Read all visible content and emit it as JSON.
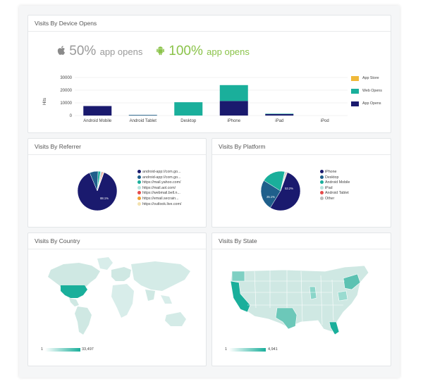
{
  "device": {
    "title": "Visits By Device Opens",
    "apple_pct": "50%",
    "apple_label": "app opens",
    "android_pct": "100%",
    "android_label": "app opens",
    "ylabel": "Hits",
    "legend": [
      "App Store",
      "Web Opens",
      "App Opens"
    ]
  },
  "chart_data": [
    {
      "type": "bar",
      "stacked": true,
      "categories": [
        "Android Mobile",
        "Android Tablet",
        "Desktop",
        "iPhone",
        "iPad",
        "iPod"
      ],
      "series": [
        {
          "name": "App Opens",
          "values": [
            7500,
            300,
            0,
            11500,
            1200,
            0
          ]
        },
        {
          "name": "Web Opens",
          "values": [
            0,
            200,
            10500,
            12500,
            300,
            0
          ]
        },
        {
          "name": "App Store",
          "values": [
            0,
            0,
            0,
            0,
            0,
            0
          ]
        }
      ],
      "yticks": [
        "30000",
        "20000",
        "10000",
        "0"
      ],
      "ylim": [
        0,
        30000
      ],
      "ylabel": "Hits",
      "colors": {
        "App Opens": "#1a1a6e",
        "Web Opens": "#1aaf9b",
        "App Store": "#f0b93a"
      }
    },
    {
      "type": "pie",
      "labels": [
        "android-app://com.go...",
        "android-app://com.go...",
        "https://mail.yahoo.com/",
        "https://mail.aol.com/",
        "https://webmail.bell.n...",
        "https://email.secrain...",
        "https://outlook.live.com/"
      ],
      "values": [
        88.1,
        7,
        2,
        1.2,
        0.8,
        0.5,
        0.4
      ],
      "colors": [
        "#1a1a6e",
        "#1f5f8b",
        "#1aaf9b",
        "#b8e2dc",
        "#e64a4a",
        "#f0a030",
        "#f3e2b0"
      ]
    },
    {
      "type": "pie",
      "labels": [
        "iPhone",
        "Desktop",
        "Android Mobile",
        "iPad",
        "Android Tablet",
        "Other"
      ],
      "values": [
        53.2,
        25.1,
        19.5,
        1.2,
        0.6,
        0.4
      ],
      "colors": [
        "#1a1a6e",
        "#1f5f8b",
        "#1aaf9b",
        "#b8e2dc",
        "#e64a4a",
        "#bbbbbb"
      ]
    }
  ],
  "referrer": {
    "title": "Visits By Referrer",
    "legend": [
      "android-app://com.go...",
      "android-app://com.go...",
      "https://mail.yahoo.com/",
      "https://mail.aol.com/",
      "https://webmail.bell.n...",
      "https://email.secrain...",
      "https://outlook.live.com/"
    ],
    "pct_label": "88.1%"
  },
  "platform": {
    "title": "Visits By Platform",
    "legend": [
      "iPhone",
      "Desktop",
      "Android Mobile",
      "iPad",
      "Android Tablet",
      "Other"
    ],
    "pct_main": "53.2%",
    "pct_second": "25.1%"
  },
  "country": {
    "title": "Visits By Country",
    "scale_min": "1",
    "scale_max": "33,497"
  },
  "state": {
    "title": "Visits By State",
    "scale_min": "1",
    "scale_max": "4,941"
  },
  "colors": {
    "navy": "#1a1a6e",
    "teal": "#1aaf9b",
    "mapLight": "#cce9e4"
  },
  "icons": [
    "apple-icon",
    "android-icon"
  ]
}
